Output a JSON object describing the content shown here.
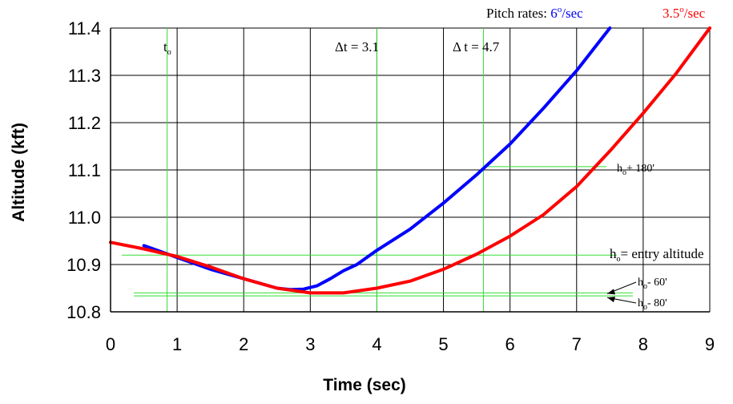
{
  "chart_data": {
    "type": "line",
    "xlabel": "Time (sec)",
    "ylabel": "Altitude (kft)",
    "xlim": [
      0,
      9
    ],
    "ylim": [
      10.8,
      11.4
    ],
    "x_ticks": [
      "0",
      "1",
      "2",
      "3",
      "4",
      "5",
      "6",
      "7",
      "8",
      "9"
    ],
    "y_ticks": [
      "10.8",
      "10.9",
      "11.0",
      "11.1",
      "11.2",
      "11.3",
      "11.4"
    ],
    "grid": true,
    "legend": {
      "prefix": "Pitch rates: ",
      "entries": [
        {
          "value": "6",
          "sup": "o",
          "unit": "/sec",
          "color": "#0000ff"
        },
        {
          "value": "3.5",
          "sup": "o",
          "unit": "/sec",
          "color": "#ff0000"
        }
      ]
    },
    "series": [
      {
        "name": "6°/sec",
        "color": "#0000ff",
        "x": [
          0.5,
          0.7,
          1.0,
          1.5,
          2.0,
          2.5,
          2.7,
          2.9,
          3.1,
          3.3,
          3.5,
          3.7,
          4.0,
          4.5,
          5.0,
          5.5,
          6.0,
          6.5,
          7.0,
          7.5
        ],
        "y": [
          10.94,
          10.93,
          10.915,
          10.89,
          10.87,
          10.85,
          10.847,
          10.848,
          10.855,
          10.87,
          10.887,
          10.9,
          10.93,
          10.975,
          11.03,
          11.09,
          11.155,
          11.23,
          11.31,
          11.4
        ]
      },
      {
        "name": "3.5°/sec",
        "color": "#ff0000",
        "x": [
          0.0,
          0.5,
          1.0,
          1.5,
          2.0,
          2.5,
          3.0,
          3.5,
          4.0,
          4.5,
          5.0,
          5.5,
          6.0,
          6.5,
          7.0,
          7.5,
          8.0,
          8.5,
          9.0
        ],
        "y": [
          10.947,
          10.933,
          10.917,
          10.895,
          10.87,
          10.85,
          10.84,
          10.84,
          10.85,
          10.865,
          10.89,
          10.922,
          10.96,
          11.005,
          11.065,
          11.14,
          11.22,
          11.305,
          11.4
        ]
      }
    ],
    "reference_lines": {
      "vertical": [
        0.85,
        4.0,
        5.6
      ],
      "horizontal": [
        10.92,
        10.84,
        10.837
      ],
      "h_180_segment": {
        "y": 11.107,
        "x_from": 5.6,
        "x_to": 7.45
      }
    },
    "annotations": {
      "t_o": {
        "main": "t",
        "sub": "o"
      },
      "dt1": "Δt = 3.1",
      "dt2": "Δ t = 4.7",
      "h180": {
        "main": "h",
        "sub": "o",
        "rest": "+ 180'"
      },
      "entry": {
        "main": "h",
        "sub": "o",
        "rest": "= entry altitude"
      },
      "h60": {
        "main": "h",
        "sub": "o",
        "rest": "- 60'"
      },
      "h80": {
        "main": "h",
        "sub": "o",
        "rest": "- 80'"
      }
    }
  }
}
